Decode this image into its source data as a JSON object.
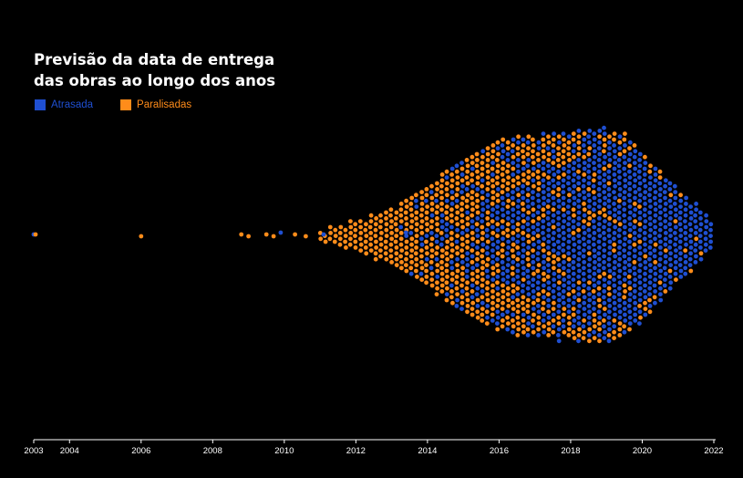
{
  "title": {
    "line1": "Previsão da data de entrega",
    "line2": "das obras ao longo dos anos"
  },
  "legend": [
    {
      "label": "Atrasada",
      "color": "#1f4fd1"
    },
    {
      "label": "Paralisadas",
      "color": "#ff8c1a"
    }
  ],
  "chart_data": {
    "type": "scatter",
    "subtype": "beeswarm",
    "title": "Previsão da data de entrega das obras ao longo dos anos",
    "xlim": [
      2003,
      2022.2
    ],
    "x_ticks": [
      "2003",
      "2004",
      "2006",
      "2008",
      "2010",
      "2012",
      "2014",
      "2016",
      "2018",
      "2020",
      "2022"
    ],
    "grid": false,
    "legend_position": "top-left",
    "series": [
      {
        "name": "Atrasada",
        "color": "#1f4fd1",
        "isolated_points": [
          2003.0,
          2009.9,
          2011.1,
          2013.4
        ],
        "density": [
          {
            "year": 2013.5,
            "count": 4
          },
          {
            "year": 2014.0,
            "count": 10
          },
          {
            "year": 2014.5,
            "count": 18
          },
          {
            "year": 2015.0,
            "count": 24
          },
          {
            "year": 2015.5,
            "count": 30
          },
          {
            "year": 2016.0,
            "count": 42
          },
          {
            "year": 2016.5,
            "count": 50
          },
          {
            "year": 2017.0,
            "count": 56
          },
          {
            "year": 2017.5,
            "count": 66
          },
          {
            "year": 2018.0,
            "count": 74
          },
          {
            "year": 2018.5,
            "count": 82
          },
          {
            "year": 2019.0,
            "count": 86
          },
          {
            "year": 2019.5,
            "count": 84
          },
          {
            "year": 2020.0,
            "count": 74
          },
          {
            "year": 2020.5,
            "count": 60
          },
          {
            "year": 2021.0,
            "count": 44
          },
          {
            "year": 2021.5,
            "count": 30
          },
          {
            "year": 2022.0,
            "count": 14
          }
        ]
      },
      {
        "name": "Paralisadas",
        "color": "#ff8c1a",
        "isolated_points": [
          2003.05,
          2006.0,
          2008.8,
          2009.0,
          2009.5,
          2009.7,
          2010.3,
          2010.6
        ],
        "density": [
          {
            "year": 2011.0,
            "count": 6
          },
          {
            "year": 2011.5,
            "count": 10
          },
          {
            "year": 2012.0,
            "count": 16
          },
          {
            "year": 2012.5,
            "count": 22
          },
          {
            "year": 2013.0,
            "count": 30
          },
          {
            "year": 2013.5,
            "count": 36
          },
          {
            "year": 2014.0,
            "count": 42
          },
          {
            "year": 2014.5,
            "count": 50
          },
          {
            "year": 2015.0,
            "count": 56
          },
          {
            "year": 2015.5,
            "count": 60
          },
          {
            "year": 2016.0,
            "count": 58
          },
          {
            "year": 2016.5,
            "count": 54
          },
          {
            "year": 2017.0,
            "count": 48
          },
          {
            "year": 2017.5,
            "count": 40
          },
          {
            "year": 2018.0,
            "count": 34
          },
          {
            "year": 2018.5,
            "count": 30
          },
          {
            "year": 2019.0,
            "count": 26
          },
          {
            "year": 2019.5,
            "count": 20
          },
          {
            "year": 2020.0,
            "count": 14
          },
          {
            "year": 2020.5,
            "count": 8
          },
          {
            "year": 2021.0,
            "count": 4
          },
          {
            "year": 2021.5,
            "count": 2
          }
        ]
      }
    ]
  }
}
